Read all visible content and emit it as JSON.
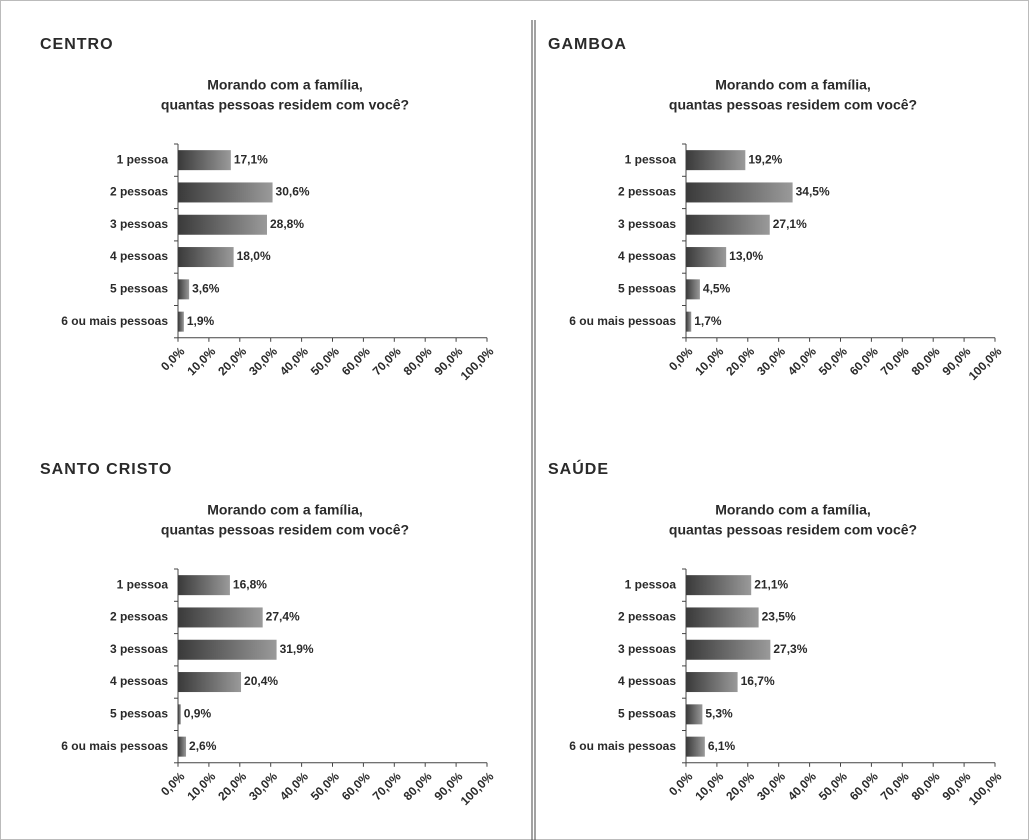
{
  "chart_data": [
    {
      "type": "hbar",
      "panel": "CENTRO",
      "title": [
        "Morando com a família,",
        "quantas pessoas residem com você?"
      ],
      "categories": [
        "1 pessoa",
        "2 pessoas",
        "3 pessoas",
        "4 pessoas",
        "5 pessoas",
        "6 ou mais pessoas"
      ],
      "values": [
        17.1,
        30.6,
        28.8,
        18.0,
        3.6,
        1.9
      ],
      "value_labels": [
        "17,1%",
        "30,6%",
        "28,8%",
        "18,0%",
        "3,6%",
        "1,9%"
      ],
      "color": "#3a3a3a",
      "xlim": [
        0,
        100
      ],
      "xticks": [
        {
          "value": 0,
          "label": "0,0%"
        },
        {
          "value": 10,
          "label": "10,0%"
        },
        {
          "value": 20,
          "label": "20,0%"
        },
        {
          "value": 30,
          "label": "30,0%"
        },
        {
          "value": 40,
          "label": "40,0%"
        },
        {
          "value": 50,
          "label": "50,0%"
        },
        {
          "value": 60,
          "label": "60,0%"
        },
        {
          "value": 70,
          "label": "70,0%"
        },
        {
          "value": 80,
          "label": "80,0%"
        },
        {
          "value": 90,
          "label": "90,0%"
        },
        {
          "value": 100,
          "label": "100,0%"
        }
      ]
    },
    {
      "type": "hbar",
      "panel": "GAMBOA",
      "title": [
        "Morando com a família,",
        "quantas pessoas residem com você?"
      ],
      "categories": [
        "1 pessoa",
        "2 pessoas",
        "3 pessoas",
        "4 pessoas",
        "5 pessoas",
        "6 ou mais pessoas"
      ],
      "values": [
        19.2,
        34.5,
        27.1,
        13.0,
        4.5,
        1.7
      ],
      "value_labels": [
        "19,2%",
        "34,5%",
        "27,1%",
        "13,0%",
        "4,5%",
        "1,7%"
      ],
      "color": "#3a3a3a",
      "xlim": [
        0,
        100
      ],
      "xticks": [
        {
          "value": 0,
          "label": "0,0%"
        },
        {
          "value": 10,
          "label": "10,0%"
        },
        {
          "value": 20,
          "label": "20,0%"
        },
        {
          "value": 30,
          "label": "30,0%"
        },
        {
          "value": 40,
          "label": "40,0%"
        },
        {
          "value": 50,
          "label": "50,0%"
        },
        {
          "value": 60,
          "label": "60,0%"
        },
        {
          "value": 70,
          "label": "70,0%"
        },
        {
          "value": 80,
          "label": "80,0%"
        },
        {
          "value": 90,
          "label": "90,0%"
        },
        {
          "value": 100,
          "label": "100,0%"
        }
      ]
    },
    {
      "type": "hbar",
      "panel": "SANTO CRISTO",
      "title": [
        "Morando com a família,",
        "quantas pessoas residem com você?"
      ],
      "categories": [
        "1 pessoa",
        "2 pessoas",
        "3 pessoas",
        "4 pessoas",
        "5 pessoas",
        "6 ou mais pessoas"
      ],
      "values": [
        16.8,
        27.4,
        31.9,
        20.4,
        0.9,
        2.6
      ],
      "value_labels": [
        "16,8%",
        "27,4%",
        "31,9%",
        "20,4%",
        "0,9%",
        "2,6%"
      ],
      "color": "#3a3a3a",
      "xlim": [
        0,
        100
      ],
      "xticks": [
        {
          "value": 0,
          "label": "0,0%"
        },
        {
          "value": 10,
          "label": "10,0%"
        },
        {
          "value": 20,
          "label": "20,0%"
        },
        {
          "value": 30,
          "label": "30,0%"
        },
        {
          "value": 40,
          "label": "40,0%"
        },
        {
          "value": 50,
          "label": "50,0%"
        },
        {
          "value": 60,
          "label": "60,0%"
        },
        {
          "value": 70,
          "label": "70,0%"
        },
        {
          "value": 80,
          "label": "80,0%"
        },
        {
          "value": 90,
          "label": "90,0%"
        },
        {
          "value": 100,
          "label": "100,0%"
        }
      ]
    },
    {
      "type": "hbar",
      "panel": "SAÚDE",
      "title": [
        "Morando com a família,",
        "quantas pessoas residem com você?"
      ],
      "categories": [
        "1 pessoa",
        "2 pessoas",
        "3 pessoas",
        "4 pessoas",
        "5 pessoas",
        "6 ou mais pessoas"
      ],
      "values": [
        21.1,
        23.5,
        27.3,
        16.7,
        5.3,
        6.1
      ],
      "value_labels": [
        "21,1%",
        "23,5%",
        "27,3%",
        "16,7%",
        "5,3%",
        "6,1%"
      ],
      "color": "#3a3a3a",
      "xlim": [
        0,
        100
      ],
      "xticks": [
        {
          "value": 0,
          "label": "0,0%"
        },
        {
          "value": 10,
          "label": "10,0%"
        },
        {
          "value": 20,
          "label": "20,0%"
        },
        {
          "value": 30,
          "label": "30,0%"
        },
        {
          "value": 40,
          "label": "40,0%"
        },
        {
          "value": 50,
          "label": "50,0%"
        },
        {
          "value": 60,
          "label": "60,0%"
        },
        {
          "value": 70,
          "label": "70,0%"
        },
        {
          "value": 80,
          "label": "80,0%"
        },
        {
          "value": 90,
          "label": "90,0%"
        },
        {
          "value": 100,
          "label": "100,0%"
        }
      ]
    }
  ]
}
